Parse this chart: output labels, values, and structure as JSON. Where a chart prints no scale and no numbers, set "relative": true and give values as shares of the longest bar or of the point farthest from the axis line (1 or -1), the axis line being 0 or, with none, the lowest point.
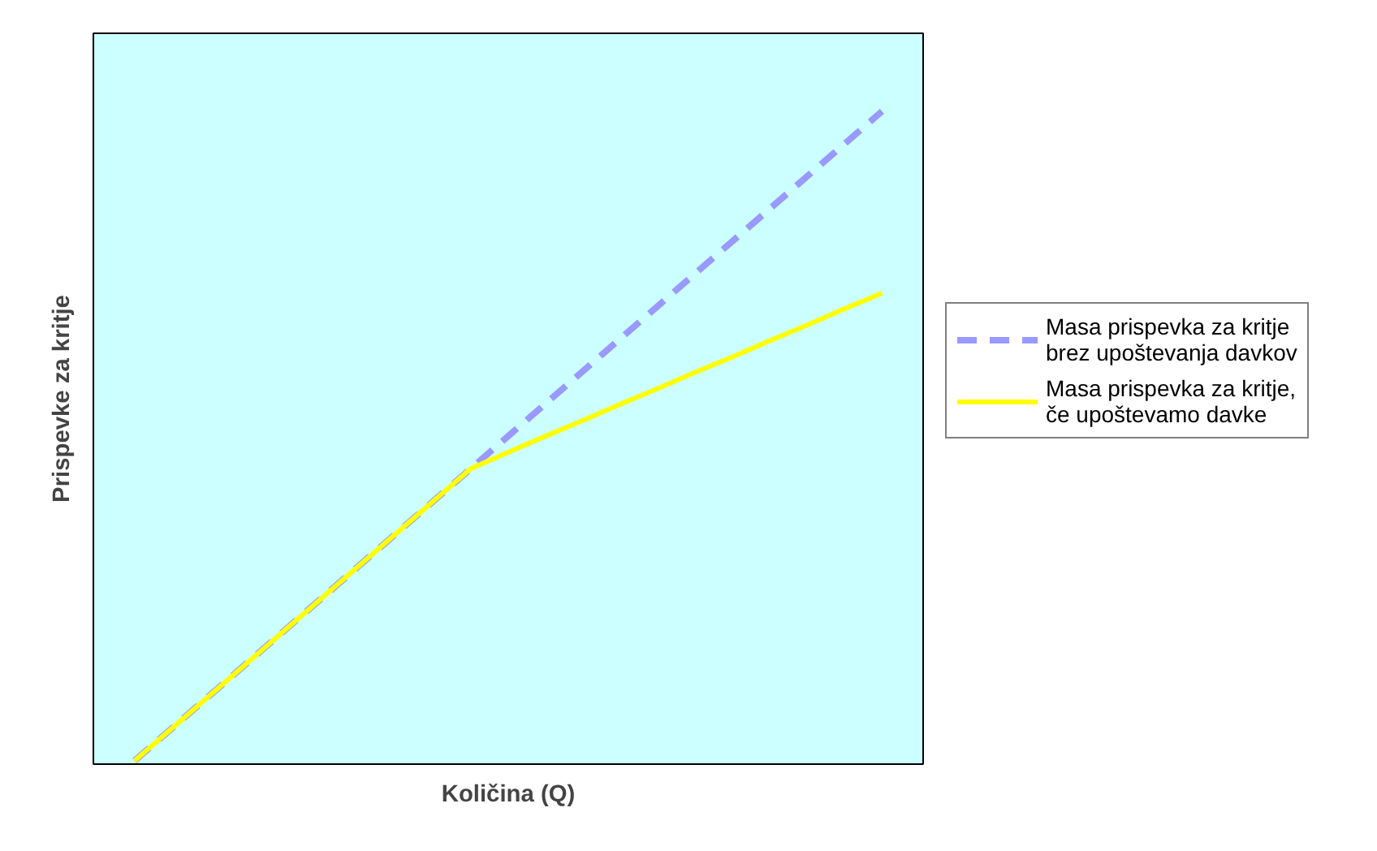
{
  "chart_data": {
    "type": "line",
    "relative": true,
    "xlabel": "Količina (Q)",
    "ylabel": "Prispevke za kritje",
    "legend": "right",
    "grid": false,
    "categories": [
      null,
      null,
      null,
      null,
      null,
      null,
      null,
      null,
      null,
      null,
      null,
      null,
      null,
      null,
      null,
      null,
      null,
      null,
      null,
      null,
      null
    ],
    "series": [
      {
        "name": "Masa prispevka za kritje brez upoštevanja davkov",
        "color": "#9999ff",
        "line_style": "dashed",
        "values": [
          0,
          0.05,
          0.1,
          0.15,
          0.2,
          0.25,
          0.3,
          0.35,
          0.4,
          0.45,
          0.5,
          0.55,
          0.6,
          0.65,
          0.7,
          0.75,
          0.8,
          0.85,
          0.9,
          0.95,
          1
        ]
      },
      {
        "name": "Masa prispevka za kritje, če upoštevamo davke",
        "color": "#ffff00",
        "line_style": "solid",
        "values": [
          0,
          0.05,
          0.1,
          0.15,
          0.2,
          0.25,
          0.3,
          0.35,
          0.4,
          0.45,
          0.475,
          0.5,
          0.524,
          0.549,
          0.573,
          0.598,
          0.622,
          0.647,
          0.671,
          0.696,
          0.72
        ]
      }
    ]
  }
}
